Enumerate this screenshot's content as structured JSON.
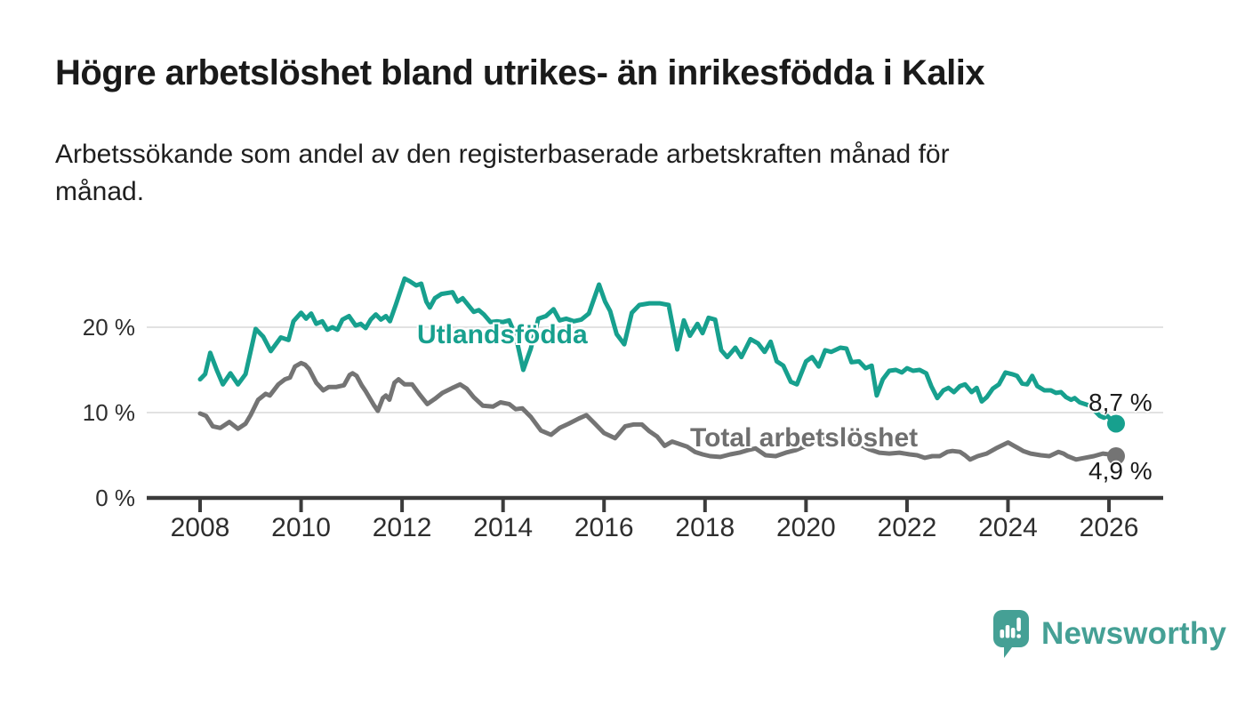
{
  "chart_data": {
    "type": "line",
    "title": "Högre arbetslöshet bland utrikes- än inrikesfödda i Kalix",
    "subtitle_lines": [
      "Arbetssökande som andel av den registerbaserade arbetskraften månad för",
      "månad."
    ],
    "unit": "%",
    "grid": "horizontal-only",
    "legend": "inline-labels",
    "x_axis": {
      "min": 2006.95,
      "max": 2027.05,
      "ticks": [
        2008,
        2010,
        2012,
        2014,
        2016,
        2018,
        2020,
        2022,
        2024,
        2026
      ]
    },
    "y_axis": {
      "range": [
        0,
        27
      ],
      "ticks": [
        {
          "value": 0,
          "label": "0 %",
          "gridline": false
        },
        {
          "value": 10,
          "label": "10 %",
          "gridline": true
        },
        {
          "value": 20,
          "label": "20 %",
          "gridline": true
        }
      ]
    },
    "style": {
      "grid_color": "#d9d9d9",
      "axis_color": "#3b3b3b",
      "tick_label_color": "#2e2e2e"
    },
    "series": [
      {
        "name": "Utlandsfödda",
        "label": "Utlandsfödda",
        "color": "#17a08e",
        "end_value_label": "8,7 %",
        "last_value": 8.7,
        "points": [
          [
            2008.0,
            13.9
          ],
          [
            2008.1,
            14.5
          ],
          [
            2008.2,
            17.0
          ],
          [
            2008.33,
            15.0
          ],
          [
            2008.45,
            13.3
          ],
          [
            2008.6,
            14.6
          ],
          [
            2008.75,
            13.3
          ],
          [
            2008.9,
            14.5
          ],
          [
            2009.1,
            19.8
          ],
          [
            2009.25,
            18.9
          ],
          [
            2009.4,
            17.2
          ],
          [
            2009.6,
            18.8
          ],
          [
            2009.75,
            18.5
          ],
          [
            2009.85,
            20.7
          ],
          [
            2010.0,
            21.7
          ],
          [
            2010.1,
            21.0
          ],
          [
            2010.2,
            21.6
          ],
          [
            2010.3,
            20.4
          ],
          [
            2010.42,
            20.7
          ],
          [
            2010.52,
            19.7
          ],
          [
            2010.62,
            20.0
          ],
          [
            2010.72,
            19.7
          ],
          [
            2010.82,
            20.9
          ],
          [
            2010.95,
            21.3
          ],
          [
            2011.08,
            20.2
          ],
          [
            2011.18,
            20.4
          ],
          [
            2011.28,
            19.9
          ],
          [
            2011.38,
            20.9
          ],
          [
            2011.48,
            21.5
          ],
          [
            2011.58,
            20.9
          ],
          [
            2011.68,
            21.3
          ],
          [
            2011.76,
            20.7
          ],
          [
            2011.88,
            22.7
          ],
          [
            2011.96,
            24.1
          ],
          [
            2012.05,
            25.7
          ],
          [
            2012.15,
            25.4
          ],
          [
            2012.28,
            24.9
          ],
          [
            2012.38,
            25.1
          ],
          [
            2012.48,
            23.0
          ],
          [
            2012.55,
            22.3
          ],
          [
            2012.65,
            23.4
          ],
          [
            2012.78,
            23.9
          ],
          [
            2013.0,
            24.1
          ],
          [
            2013.1,
            23.0
          ],
          [
            2013.2,
            23.4
          ],
          [
            2013.35,
            22.3
          ],
          [
            2013.42,
            21.8
          ],
          [
            2013.52,
            22.0
          ],
          [
            2013.62,
            21.5
          ],
          [
            2013.75,
            20.6
          ],
          [
            2013.88,
            20.7
          ],
          [
            2014.0,
            20.6
          ],
          [
            2014.12,
            20.8
          ],
          [
            2014.25,
            19.0
          ],
          [
            2014.4,
            15.0
          ],
          [
            2014.55,
            17.5
          ],
          [
            2014.7,
            21.0
          ],
          [
            2014.85,
            21.3
          ],
          [
            2015.0,
            22.1
          ],
          [
            2015.12,
            20.8
          ],
          [
            2015.25,
            21.0
          ],
          [
            2015.4,
            20.7
          ],
          [
            2015.55,
            20.9
          ],
          [
            2015.7,
            21.6
          ],
          [
            2015.9,
            25.0
          ],
          [
            2016.02,
            23.0
          ],
          [
            2016.12,
            21.9
          ],
          [
            2016.25,
            19.2
          ],
          [
            2016.4,
            18.0
          ],
          [
            2016.55,
            21.7
          ],
          [
            2016.7,
            22.6
          ],
          [
            2016.9,
            22.8
          ],
          [
            2017.1,
            22.8
          ],
          [
            2017.28,
            22.6
          ],
          [
            2017.45,
            17.4
          ],
          [
            2017.58,
            20.8
          ],
          [
            2017.7,
            19.0
          ],
          [
            2017.85,
            20.4
          ],
          [
            2017.95,
            19.3
          ],
          [
            2018.07,
            21.1
          ],
          [
            2018.2,
            20.9
          ],
          [
            2018.32,
            17.3
          ],
          [
            2018.44,
            16.5
          ],
          [
            2018.6,
            17.6
          ],
          [
            2018.72,
            16.5
          ],
          [
            2018.9,
            18.6
          ],
          [
            2019.05,
            18.1
          ],
          [
            2019.18,
            17.1
          ],
          [
            2019.3,
            18.3
          ],
          [
            2019.42,
            16.0
          ],
          [
            2019.55,
            15.5
          ],
          [
            2019.7,
            13.6
          ],
          [
            2019.82,
            13.3
          ],
          [
            2020.0,
            16.0
          ],
          [
            2020.12,
            16.5
          ],
          [
            2020.25,
            15.4
          ],
          [
            2020.38,
            17.3
          ],
          [
            2020.5,
            17.1
          ],
          [
            2020.68,
            17.6
          ],
          [
            2020.8,
            17.5
          ],
          [
            2020.9,
            15.9
          ],
          [
            2021.05,
            16.0
          ],
          [
            2021.18,
            15.2
          ],
          [
            2021.3,
            15.5
          ],
          [
            2021.4,
            12.0
          ],
          [
            2021.52,
            13.9
          ],
          [
            2021.65,
            14.9
          ],
          [
            2021.78,
            15.0
          ],
          [
            2021.9,
            14.7
          ],
          [
            2022.0,
            15.2
          ],
          [
            2022.12,
            14.9
          ],
          [
            2022.25,
            15.0
          ],
          [
            2022.38,
            14.6
          ],
          [
            2022.48,
            13.1
          ],
          [
            2022.6,
            11.7
          ],
          [
            2022.72,
            12.6
          ],
          [
            2022.82,
            12.9
          ],
          [
            2022.93,
            12.4
          ],
          [
            2023.05,
            13.1
          ],
          [
            2023.15,
            13.3
          ],
          [
            2023.28,
            12.4
          ],
          [
            2023.38,
            12.9
          ],
          [
            2023.48,
            11.3
          ],
          [
            2023.58,
            11.8
          ],
          [
            2023.7,
            12.8
          ],
          [
            2023.82,
            13.3
          ],
          [
            2023.95,
            14.7
          ],
          [
            2024.08,
            14.5
          ],
          [
            2024.18,
            14.3
          ],
          [
            2024.28,
            13.4
          ],
          [
            2024.38,
            13.3
          ],
          [
            2024.48,
            14.3
          ],
          [
            2024.58,
            13.1
          ],
          [
            2024.72,
            12.6
          ],
          [
            2024.85,
            12.6
          ],
          [
            2024.95,
            12.3
          ],
          [
            2025.05,
            12.4
          ],
          [
            2025.15,
            11.8
          ],
          [
            2025.25,
            11.5
          ],
          [
            2025.32,
            11.7
          ],
          [
            2025.42,
            11.2
          ],
          [
            2025.52,
            11.0
          ],
          [
            2025.62,
            10.8
          ],
          [
            2025.72,
            10.2
          ],
          [
            2025.82,
            9.6
          ],
          [
            2025.9,
            9.4
          ],
          [
            2025.97,
            9.6
          ],
          [
            2026.05,
            9.1
          ],
          [
            2026.14,
            8.7
          ]
        ]
      },
      {
        "name": "Total arbetslöshet",
        "label": "Total arbetslöshet",
        "color": "#747474",
        "end_value_label": "4,9 %",
        "last_value": 4.9,
        "points": [
          [
            2008.0,
            9.9
          ],
          [
            2008.12,
            9.6
          ],
          [
            2008.25,
            8.4
          ],
          [
            2008.4,
            8.2
          ],
          [
            2008.58,
            8.9
          ],
          [
            2008.75,
            8.1
          ],
          [
            2008.9,
            8.7
          ],
          [
            2009.0,
            9.7
          ],
          [
            2009.15,
            11.5
          ],
          [
            2009.3,
            12.2
          ],
          [
            2009.38,
            12.0
          ],
          [
            2009.55,
            13.3
          ],
          [
            2009.68,
            13.9
          ],
          [
            2009.78,
            14.1
          ],
          [
            2009.88,
            15.4
          ],
          [
            2010.0,
            15.8
          ],
          [
            2010.08,
            15.6
          ],
          [
            2010.16,
            15.1
          ],
          [
            2010.3,
            13.5
          ],
          [
            2010.44,
            12.6
          ],
          [
            2010.55,
            13.0
          ],
          [
            2010.7,
            13.0
          ],
          [
            2010.85,
            13.2
          ],
          [
            2010.96,
            14.4
          ],
          [
            2011.02,
            14.6
          ],
          [
            2011.1,
            14.3
          ],
          [
            2011.2,
            13.2
          ],
          [
            2011.28,
            12.5
          ],
          [
            2011.44,
            10.9
          ],
          [
            2011.52,
            10.2
          ],
          [
            2011.62,
            11.7
          ],
          [
            2011.68,
            12.0
          ],
          [
            2011.75,
            11.5
          ],
          [
            2011.85,
            13.5
          ],
          [
            2011.93,
            13.9
          ],
          [
            2012.05,
            13.3
          ],
          [
            2012.2,
            13.3
          ],
          [
            2012.35,
            12.1
          ],
          [
            2012.5,
            11.0
          ],
          [
            2012.65,
            11.6
          ],
          [
            2012.8,
            12.3
          ],
          [
            2013.0,
            12.9
          ],
          [
            2013.15,
            13.3
          ],
          [
            2013.28,
            12.8
          ],
          [
            2013.42,
            11.8
          ],
          [
            2013.6,
            10.8
          ],
          [
            2013.8,
            10.7
          ],
          [
            2013.95,
            11.2
          ],
          [
            2014.12,
            11.0
          ],
          [
            2014.25,
            10.4
          ],
          [
            2014.38,
            10.5
          ],
          [
            2014.55,
            9.5
          ],
          [
            2014.75,
            7.9
          ],
          [
            2014.95,
            7.4
          ],
          [
            2015.12,
            8.2
          ],
          [
            2015.3,
            8.7
          ],
          [
            2015.5,
            9.3
          ],
          [
            2015.65,
            9.7
          ],
          [
            2015.82,
            8.7
          ],
          [
            2016.0,
            7.6
          ],
          [
            2016.22,
            7.0
          ],
          [
            2016.42,
            8.4
          ],
          [
            2016.58,
            8.6
          ],
          [
            2016.75,
            8.6
          ],
          [
            2016.9,
            7.8
          ],
          [
            2017.05,
            7.2
          ],
          [
            2017.2,
            6.1
          ],
          [
            2017.35,
            6.6
          ],
          [
            2017.5,
            6.3
          ],
          [
            2017.65,
            6.0
          ],
          [
            2017.8,
            5.4
          ],
          [
            2017.95,
            5.1
          ],
          [
            2018.1,
            4.9
          ],
          [
            2018.3,
            4.8
          ],
          [
            2018.5,
            5.1
          ],
          [
            2018.68,
            5.3
          ],
          [
            2018.85,
            5.6
          ],
          [
            2019.0,
            5.8
          ],
          [
            2019.2,
            5.0
          ],
          [
            2019.4,
            4.9
          ],
          [
            2019.6,
            5.3
          ],
          [
            2019.8,
            5.6
          ],
          [
            2020.0,
            6.1
          ],
          [
            2020.25,
            6.9
          ],
          [
            2020.45,
            7.2
          ],
          [
            2020.65,
            7.0
          ],
          [
            2020.85,
            6.7
          ],
          [
            2021.05,
            6.3
          ],
          [
            2021.25,
            5.7
          ],
          [
            2021.45,
            5.3
          ],
          [
            2021.65,
            5.2
          ],
          [
            2021.85,
            5.3
          ],
          [
            2022.05,
            5.1
          ],
          [
            2022.2,
            5.0
          ],
          [
            2022.35,
            4.7
          ],
          [
            2022.5,
            4.9
          ],
          [
            2022.65,
            4.9
          ],
          [
            2022.8,
            5.4
          ],
          [
            2022.9,
            5.5
          ],
          [
            2023.05,
            5.4
          ],
          [
            2023.15,
            5.0
          ],
          [
            2023.25,
            4.5
          ],
          [
            2023.4,
            4.9
          ],
          [
            2023.58,
            5.2
          ],
          [
            2023.76,
            5.8
          ],
          [
            2024.0,
            6.5
          ],
          [
            2024.12,
            6.1
          ],
          [
            2024.3,
            5.5
          ],
          [
            2024.45,
            5.2
          ],
          [
            2024.65,
            5.0
          ],
          [
            2024.82,
            4.9
          ],
          [
            2025.0,
            5.4
          ],
          [
            2025.1,
            5.2
          ],
          [
            2025.18,
            4.9
          ],
          [
            2025.35,
            4.5
          ],
          [
            2025.52,
            4.7
          ],
          [
            2025.7,
            4.9
          ],
          [
            2025.88,
            5.2
          ],
          [
            2026.0,
            5.1
          ],
          [
            2026.14,
            4.9
          ]
        ]
      }
    ]
  },
  "branding": {
    "logo_text": "Newsworthy",
    "logo_color": "#45a095",
    "icon": "newsworthy-speech-bubble-chart-icon"
  }
}
